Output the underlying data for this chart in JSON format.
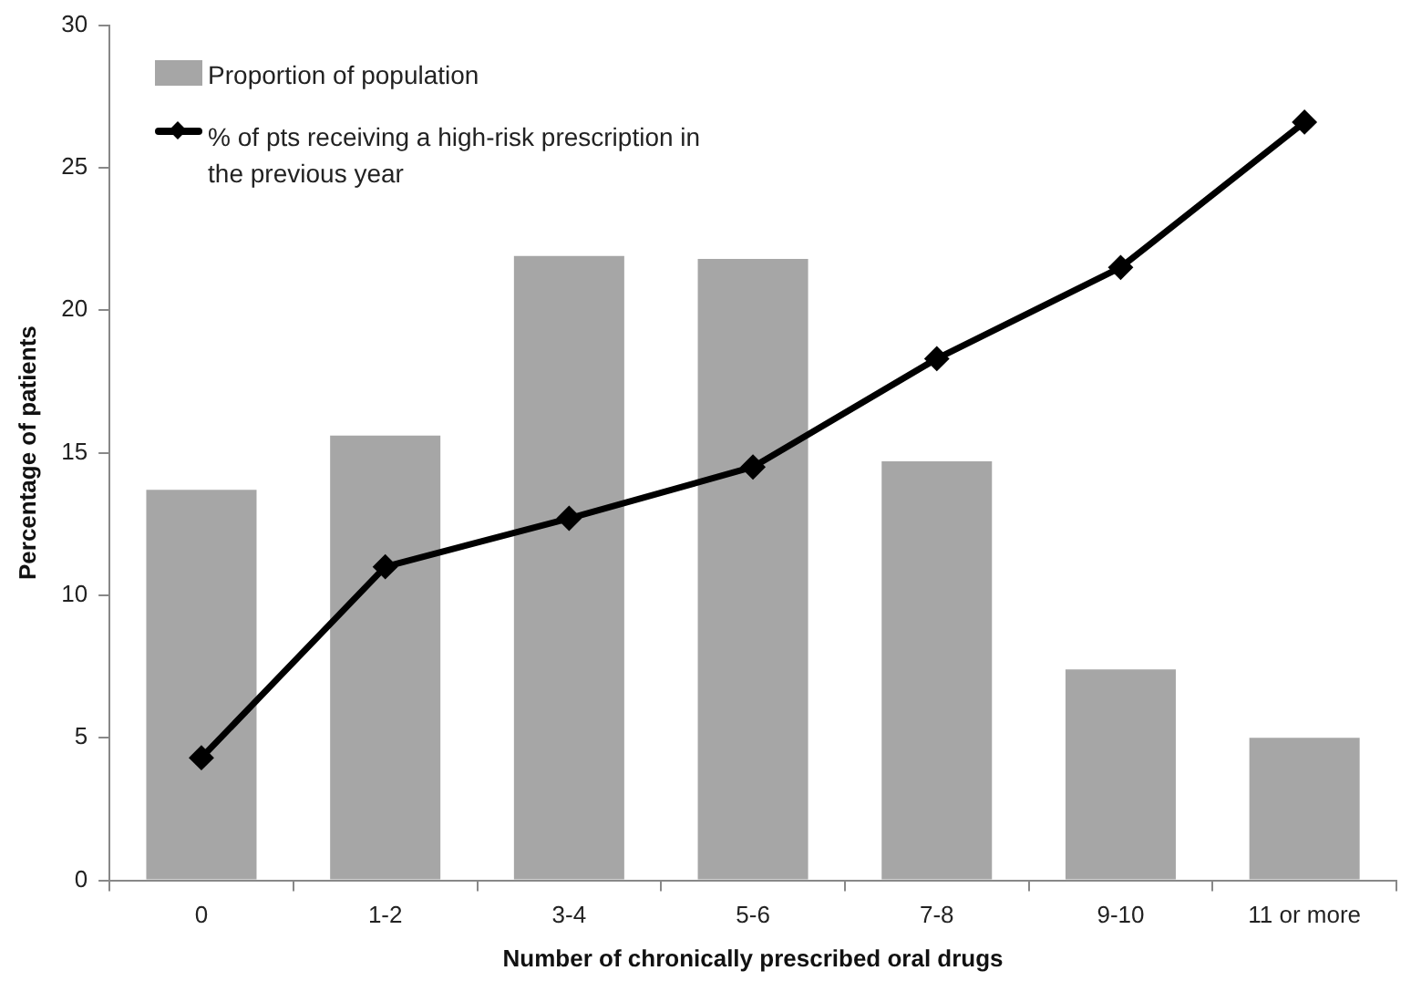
{
  "chart_data": {
    "type": "bar",
    "xlabel": "Number of chronically prescribed oral drugs",
    "ylabel": "Percentage of patients",
    "categories": [
      "0",
      "1-2",
      "3-4",
      "5-6",
      "7-8",
      "9-10",
      "11 or more"
    ],
    "series": [
      {
        "name": "Proportion of population",
        "color": "#a6a6a6",
        "values": [
          13.7,
          15.6,
          21.9,
          21.8,
          14.7,
          7.4,
          5.0
        ]
      },
      {
        "name": "% of pts receiving a high-risk prescription in the previous year",
        "type": "line",
        "color": "#000000",
        "marker": "diamond",
        "line_style": "solid",
        "values": [
          4.3,
          11.0,
          12.7,
          14.5,
          18.3,
          21.5,
          26.6
        ]
      }
    ],
    "ylim": [
      0,
      30
    ],
    "yticks": [
      0,
      5,
      10,
      15,
      20,
      25,
      30
    ],
    "grid": false,
    "legend": "top left"
  }
}
